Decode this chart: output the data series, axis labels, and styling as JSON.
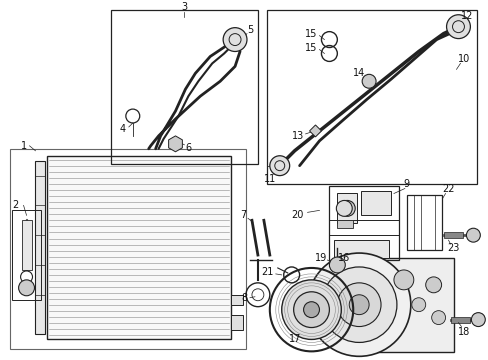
{
  "bg_color": "#ffffff",
  "line_color": "#222222",
  "label_color": "#111111",
  "fig_width": 4.89,
  "fig_height": 3.6,
  "dpi": 100
}
